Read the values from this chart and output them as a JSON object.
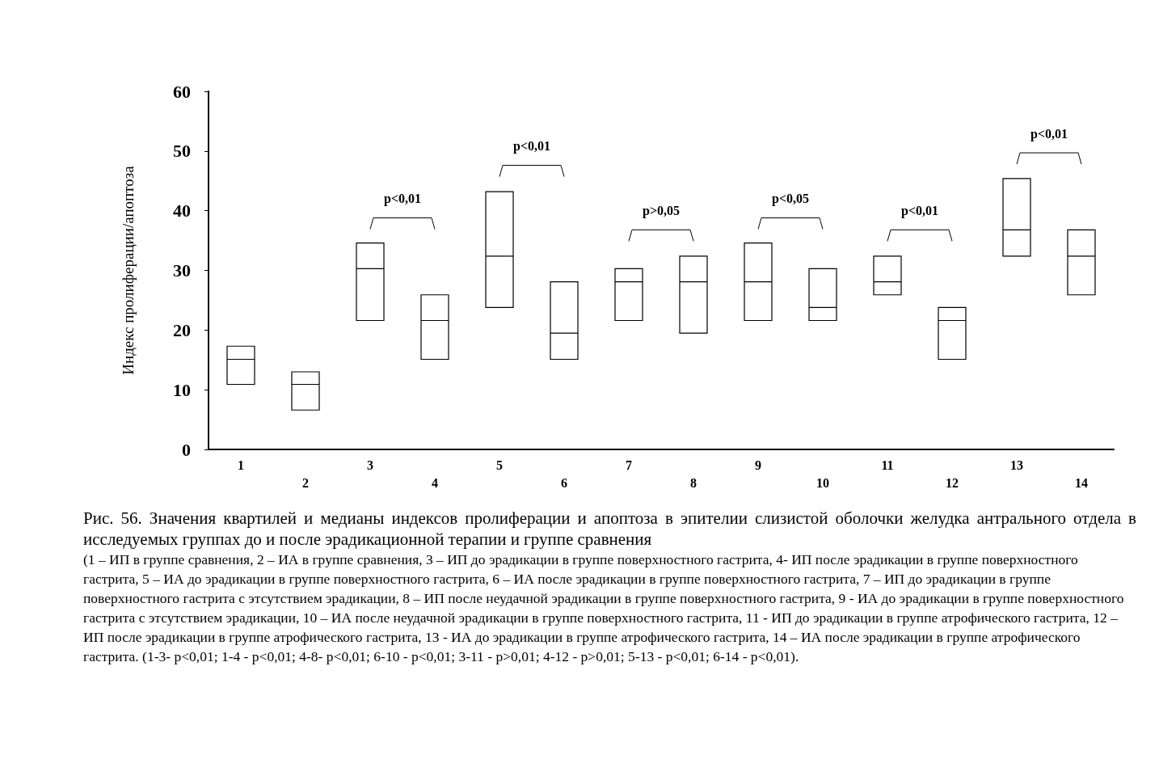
{
  "chart_data": {
    "type": "box",
    "title": "Рис. 56. Значения квартилей и медианы индексов пролиферации и апоптоза в эпителии слизистой оболочки желудка антрального отдела в исследуемых группах до и после эрадикационной терапии  и группе сравнения",
    "ylabel": "Индекс пролиферации/апоптоза",
    "categories": [
      "1",
      "2",
      "3",
      "4",
      "5",
      "6",
      "7",
      "8",
      "9",
      "10",
      "11",
      "12",
      "13",
      "14"
    ],
    "boxes": [
      {
        "low": 10.9,
        "q1": 10.9,
        "median": 15.1,
        "q3": 17.3,
        "high": 17.3
      },
      {
        "low": 6.6,
        "q1": 6.6,
        "median": 10.9,
        "q3": 13,
        "high": 13
      },
      {
        "low": 21.6,
        "q1": 21.6,
        "median": 30.3,
        "q3": 34.6,
        "high": 34.6
      },
      {
        "low": 15.1,
        "q1": 15.1,
        "median": 21.6,
        "q3": 25.9,
        "high": 25.9
      },
      {
        "low": 23.8,
        "q1": 23.8,
        "median": 32.4,
        "q3": 43.2,
        "high": 43.2
      },
      {
        "low": 15.1,
        "q1": 15.1,
        "median": 19.5,
        "q3": 28.1,
        "high": 28.1
      },
      {
        "low": 21.6,
        "q1": 21.6,
        "median": 28.1,
        "q3": 30.3,
        "high": 30.3
      },
      {
        "low": 19.5,
        "q1": 19.5,
        "median": 28.1,
        "q3": 32.4,
        "high": 32.4
      },
      {
        "low": 21.6,
        "q1": 21.6,
        "median": 28.1,
        "q3": 34.6,
        "high": 34.6
      },
      {
        "low": 21.6,
        "q1": 21.6,
        "median": 23.8,
        "q3": 30.3,
        "high": 30.3
      },
      {
        "low": 25.9,
        "q1": 25.9,
        "median": 28.1,
        "q3": 32.4,
        "high": 32.4
      },
      {
        "low": 15.1,
        "q1": 15.1,
        "median": 21.6,
        "q3": 23.8,
        "high": 23.8
      },
      {
        "low": 32.4,
        "q1": 32.4,
        "median": 36.8,
        "q3": 45.4,
        "high": 45.4
      },
      {
        "low": 25.9,
        "q1": 25.9,
        "median": 32.4,
        "q3": 36.8,
        "high": 36.8
      }
    ],
    "color": "#000000",
    "ylim": [
      0,
      60
    ],
    "yticks": [
      0,
      10,
      20,
      30,
      40,
      50,
      60
    ],
    "grid": false,
    "annotations": [
      "p<0,01",
      "p<0,01",
      "p>0,05",
      "p<0,05",
      "p<0,01",
      "p<0,01",
      "(1 – ИП в группе сравнения, 2 – ИА в группе сравнения, 3 – ИП до эрадикации в группе поверхностного гастрита, 4- ИП после эрадикации в группе поверхностного гастрита, 5 – ИА до эрадикации в группе поверхностного гастрита, 6 – ИА после эрадикации в группе поверхностного гастрита, 7 – ИП до эрадикации в группе поверхностного гастрита с этсутствием эрадикации, 8 – ИП после неудачной эрадикации в группе поверхностного гастрита, 9 - ИА до эрадикации в группе поверхностного гастрита с этсутствием эрадикации, 10 – ИА после неудачной эрадикации в группе поверхностного гастрита, 11 - ИП до эрадикации в группе атрофического гастрита, 12 – ИП после эрадикации в группе атрофического гастрита, 13 - ИА до эрадикации в группе атрофического гастрита, 14 – ИА после эрадикации в группе атрофического гастрита. (1-3- p<0,01; 1-4 - p<0,01; 4-8- p<0,01; 6-10 - p<0,01; 3-11 - p>0,01; 4-12 - p>0,01; 5-13 - p<0,01; 6-14 - p<0,01)."
    ]
  }
}
